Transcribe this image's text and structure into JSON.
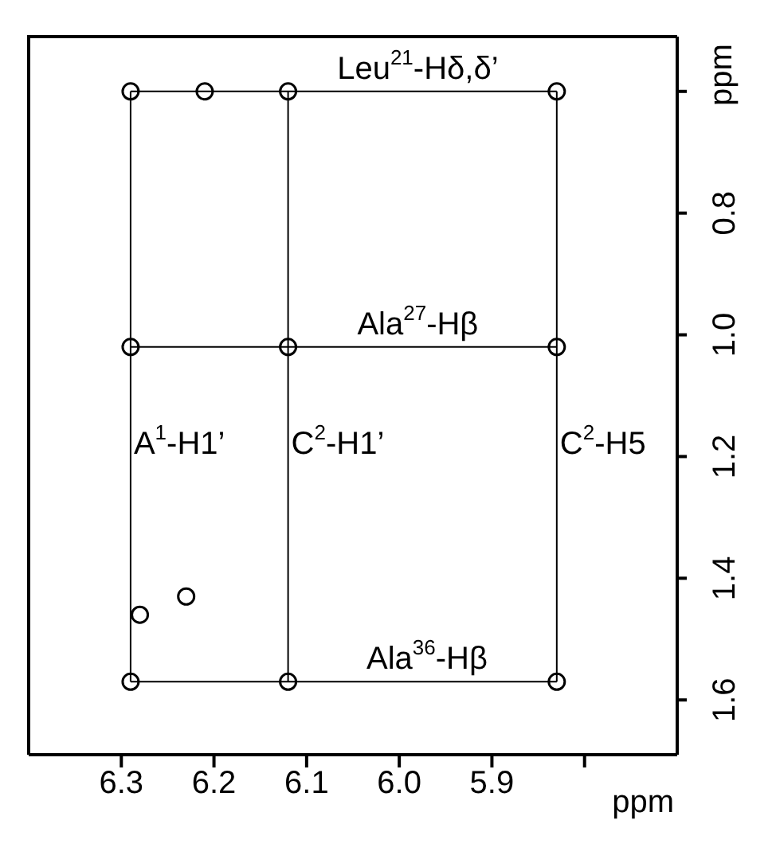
{
  "chart_data": {
    "type": "scatter",
    "xlabel": "ppm",
    "ylabel": "ppm",
    "marker": "circle",
    "xlim": [
      6.4,
      5.7
    ],
    "xticks": [
      6.3,
      6.2,
      6.1,
      {
        "value": 6.0,
        "label": "6.0"
      },
      5.9,
      {
        "value": 5.8,
        "label": null
      }
    ],
    "ylim": [
      1.69,
      0.51
    ],
    "yticks": [
      {
        "value": 0.6,
        "label": null
      },
      0.8,
      {
        "value": 1.0,
        "label": "1.0"
      },
      1.2,
      1.4,
      1.6
    ],
    "series": [
      {
        "type": "line",
        "marker": "none",
        "color": "#000000",
        "x": [
          6.29,
          5.83
        ],
        "values": [
          0.6,
          0.6
        ]
      },
      {
        "type": "line",
        "marker": "none",
        "color": "#000000",
        "x": [
          6.29,
          5.83
        ],
        "values": [
          1.02,
          1.02
        ]
      },
      {
        "type": "line",
        "marker": "none",
        "color": "#000000",
        "x": [
          6.29,
          5.83
        ],
        "values": [
          1.57,
          1.57
        ]
      },
      {
        "type": "line",
        "marker": "none",
        "color": "#000000",
        "x": [
          6.29,
          6.29
        ],
        "values": [
          0.6,
          1.57
        ]
      },
      {
        "type": "line",
        "marker": "none",
        "color": "#000000",
        "x": [
          6.12,
          6.12
        ],
        "values": [
          0.6,
          1.57
        ]
      },
      {
        "type": "line",
        "marker": "none",
        "color": "#000000",
        "x": [
          5.83,
          5.83
        ],
        "values": [
          0.6,
          1.57
        ]
      },
      {
        "color": "#000000",
        "x": [
          6.29,
          6.21,
          6.12,
          5.83,
          6.29,
          6.12,
          5.83,
          6.29,
          6.12,
          5.83,
          6.28,
          6.23
        ],
        "values": [
          0.6,
          0.6,
          0.6,
          0.6,
          1.02,
          1.02,
          1.02,
          1.57,
          1.57,
          1.57,
          1.46,
          1.43
        ]
      }
    ],
    "annotations": [
      {
        "text": "Leu$^{21}$-Hδ,δ’",
        "x": 5.98,
        "y": 0.6
      },
      {
        "text": "Ala$^{27}$-Hβ",
        "x": 5.98,
        "y": 1.02
      },
      {
        "text": "Ala$^{36}$-Hβ",
        "x": 5.97,
        "y": 1.57
      },
      {
        "text": "A$^{1}$-H1’",
        "x": 6.29,
        "y": 1.18
      },
      {
        "text": "C$^{2}$-H1’",
        "x": 6.12,
        "y": 1.18
      },
      {
        "text": "C$^{2}$-H5",
        "x": 5.83,
        "y": 1.18
      }
    ]
  }
}
